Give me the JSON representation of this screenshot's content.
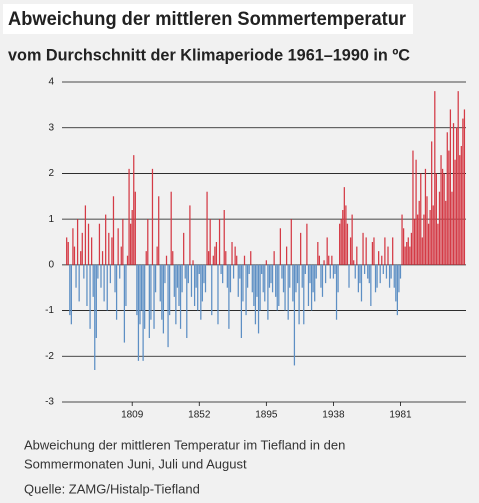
{
  "chart_data": {
    "type": "bar",
    "title": "Abweichung der mittleren Sommertemperatur",
    "subtitle": "vom Durchschnitt der Klimaperiode 1961–1990 in ºC",
    "caption": [
      "Abweichung der mittleren Temperatur im Tiefland in den",
      "Sommermonaten Juni, Juli und August"
    ],
    "source": "Quelle: ZAMG/Histalp-Tiefland",
    "x": [
      1767,
      1768,
      1769,
      1770,
      1771,
      1772,
      1773,
      1774,
      1775,
      1776,
      1777,
      1778,
      1779,
      1780,
      1781,
      1782,
      1783,
      1784,
      1785,
      1786,
      1787,
      1788,
      1789,
      1790,
      1791,
      1792,
      1793,
      1794,
      1795,
      1796,
      1797,
      1798,
      1799,
      1800,
      1801,
      1802,
      1803,
      1804,
      1805,
      1806,
      1807,
      1808,
      1809,
      1810,
      1811,
      1812,
      1813,
      1814,
      1815,
      1816,
      1817,
      1818,
      1819,
      1820,
      1821,
      1822,
      1823,
      1824,
      1825,
      1826,
      1827,
      1828,
      1829,
      1830,
      1831,
      1832,
      1833,
      1834,
      1835,
      1836,
      1837,
      1838,
      1839,
      1840,
      1841,
      1842,
      1843,
      1844,
      1845,
      1846,
      1847,
      1848,
      1849,
      1850,
      1851,
      1852,
      1853,
      1854,
      1855,
      1856,
      1857,
      1858,
      1859,
      1860,
      1861,
      1862,
      1863,
      1864,
      1865,
      1866,
      1867,
      1868,
      1869,
      1870,
      1871,
      1872,
      1873,
      1874,
      1875,
      1876,
      1877,
      1878,
      1879,
      1880,
      1881,
      1882,
      1883,
      1884,
      1885,
      1886,
      1887,
      1888,
      1889,
      1890,
      1891,
      1892,
      1893,
      1894,
      1895,
      1896,
      1897,
      1898,
      1899,
      1900,
      1901,
      1902,
      1903,
      1904,
      1905,
      1906,
      1907,
      1908,
      1909,
      1910,
      1911,
      1912,
      1913,
      1914,
      1915,
      1916,
      1917,
      1918,
      1919,
      1920,
      1921,
      1922,
      1923,
      1924,
      1925,
      1926,
      1927,
      1928,
      1929,
      1930,
      1931,
      1932,
      1933,
      1934,
      1935,
      1936,
      1937,
      1938,
      1939,
      1940,
      1941,
      1942,
      1943,
      1944,
      1945,
      1946,
      1947,
      1948,
      1949,
      1950,
      1951,
      1952,
      1953,
      1954,
      1955,
      1956,
      1957,
      1958,
      1959,
      1960,
      1961,
      1962,
      1963,
      1964,
      1965,
      1966,
      1967,
      1968,
      1969,
      1970,
      1971,
      1972,
      1973,
      1974,
      1975,
      1976,
      1977,
      1978,
      1979,
      1980,
      1981,
      1982,
      1983,
      1984,
      1985,
      1986,
      1987,
      1988,
      1989,
      1990,
      1991,
      1992,
      1993,
      1994,
      1995,
      1996,
      1997,
      1998,
      1999,
      2000,
      2001,
      2002,
      2003,
      2004,
      2005,
      2006,
      2007,
      2008,
      2009,
      2010,
      2011,
      2012,
      2013,
      2014,
      2015,
      2016,
      2017,
      2018,
      2019,
      2020,
      2021,
      2022
    ],
    "values": [
      0.6,
      0.5,
      -1.1,
      -1.3,
      0.8,
      0.4,
      -0.5,
      1.0,
      -0.8,
      0.3,
      0.7,
      -0.3,
      1.3,
      -0.9,
      0.9,
      -1.4,
      0.6,
      -0.7,
      -2.3,
      -1.6,
      -0.3,
      0.9,
      -0.5,
      0.3,
      -0.8,
      1.1,
      -1.0,
      0.7,
      -0.4,
      0.6,
      1.5,
      -0.6,
      -1.2,
      0.8,
      -0.3,
      0.4,
      1.0,
      -1.7,
      -0.9,
      0.2,
      2.1,
      0.9,
      1.2,
      2.4,
      1.6,
      -1.1,
      -2.1,
      -1.3,
      -1.0,
      -2.1,
      -1.4,
      0.3,
      1.0,
      -1.6,
      -1.2,
      2.1,
      -1.4,
      -0.6,
      0.4,
      1.5,
      -0.8,
      -1.2,
      -1.5,
      -0.4,
      0.2,
      -1.8,
      -1.1,
      1.6,
      0.3,
      -0.7,
      -1.3,
      -0.5,
      -0.9,
      -1.4,
      -0.6,
      0.7,
      -0.3,
      -1.6,
      -0.4,
      1.3,
      -0.7,
      0.1,
      -0.9,
      -0.5,
      -1.0,
      -0.2,
      -1.2,
      -0.8,
      -0.4,
      -0.6,
      1.6,
      0.3,
      1.0,
      -1.1,
      0.2,
      0.4,
      0.5,
      -1.3,
      1.0,
      -0.2,
      -0.4,
      1.2,
      0.3,
      -0.5,
      -1.4,
      -0.6,
      0.5,
      -0.3,
      0.4,
      0.2,
      -0.7,
      -0.3,
      -1.6,
      -0.8,
      0.2,
      -1.1,
      -0.5,
      -0.2,
      0.3,
      -0.6,
      -0.9,
      -1.3,
      -0.7,
      -1.5,
      -1.0,
      -0.2,
      -0.6,
      -0.8,
      0.1,
      -1.2,
      -0.5,
      -0.4,
      -0.6,
      0.3,
      -0.7,
      -1.0,
      -0.9,
      0.8,
      -0.3,
      -0.6,
      -1.0,
      0.4,
      -1.2,
      -0.5,
      1.0,
      -0.8,
      -2.2,
      -0.6,
      -0.4,
      -1.3,
      0.7,
      -0.5,
      -1.3,
      -0.2,
      0.9,
      -0.9,
      -0.4,
      -1.0,
      -0.6,
      -0.8,
      -0.3,
      0.5,
      0.2,
      -0.5,
      -0.7,
      0.1,
      -0.4,
      0.6,
      0.2,
      -0.3,
      0.2,
      -0.3,
      -0.2,
      -1.2,
      -0.6,
      0.9,
      1.0,
      1.2,
      1.7,
      1.3,
      0.9,
      -0.5,
      0.6,
      1.1,
      0.1,
      -0.3,
      0.4,
      -0.6,
      -0.4,
      -0.8,
      0.7,
      -0.2,
      0.6,
      -0.3,
      -0.4,
      -0.9,
      0.5,
      0.6,
      -0.6,
      -0.5,
      0.3,
      -0.4,
      0.2,
      -0.2,
      0.6,
      -0.3,
      0.4,
      -0.5,
      -0.3,
      0.6,
      -0.5,
      -0.8,
      -1.1,
      -0.6,
      -0.3,
      1.1,
      0.8,
      0.4,
      0.5,
      0.6,
      0.4,
      0.7,
      2.5,
      1.0,
      2.3,
      1.1,
      1.4,
      2.0,
      0.6,
      1.1,
      2.1,
      1.5,
      0.9,
      1.2,
      2.7,
      1.3,
      3.8,
      2.0,
      0.9,
      1.6,
      2.4,
      2.1,
      2.0,
      1.4,
      2.9,
      2.5,
      3.4,
      1.6,
      3.1,
      2.3,
      3.0,
      3.8,
      2.4,
      2.6,
      3.2,
      3.4
    ],
    "colors": {
      "positive": "#d43a45",
      "negative": "#5d8fc4"
    },
    "xlim": [
      1764,
      2023
    ],
    "xticks": [
      1809,
      1852,
      1895,
      1938,
      1981
    ],
    "ylim": [
      -3,
      4
    ],
    "yticks": [
      -3,
      -2,
      -1,
      0,
      1,
      2,
      3,
      4
    ],
    "grid": true
  }
}
